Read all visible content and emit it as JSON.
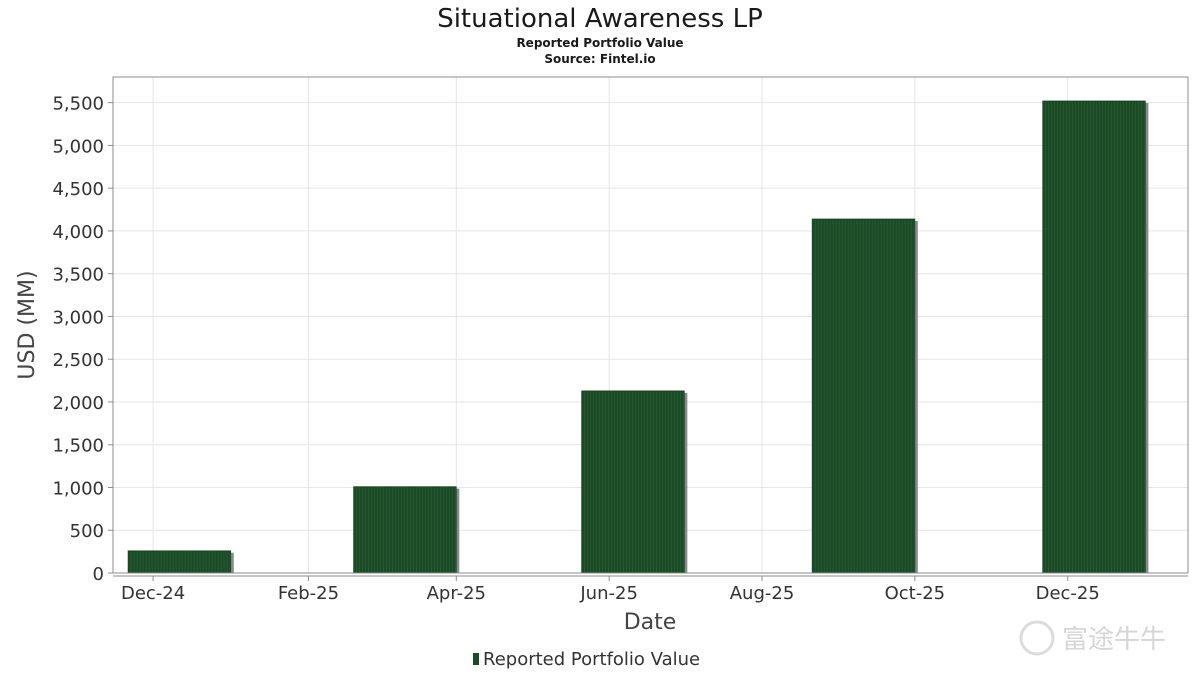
{
  "chart_data": {
    "type": "bar",
    "title": "Situational Awareness LP",
    "subtitle": "Reported Portfolio Value",
    "source": "Source: Fintel.io",
    "xlabel": "Date",
    "ylabel": "USD (MM)",
    "x_tick_labels": [
      "Dec-24",
      "Feb-25",
      "Apr-25",
      "Jun-25",
      "Aug-25",
      "Oct-25",
      "Dec-25"
    ],
    "y_tick_labels": [
      "0",
      "500",
      "1,000",
      "1,500",
      "2,000",
      "2,500",
      "3,000",
      "3,500",
      "4,000",
      "4,500",
      "5,000",
      "5,500"
    ],
    "ylim": [
      0,
      5800
    ],
    "grid": true,
    "legend_position": "bottom-center",
    "series": [
      {
        "name": "Reported Portfolio Value",
        "color": "#1b4a26",
        "points": [
          {
            "date": "2024-12-31",
            "value": 260
          },
          {
            "date": "2025-03-31",
            "value": 1010
          },
          {
            "date": "2025-06-30",
            "value": 2130
          },
          {
            "date": "2025-09-30",
            "value": 4140
          },
          {
            "date": "2025-12-31",
            "value": 5520
          }
        ]
      }
    ],
    "watermark": "富途牛牛"
  }
}
